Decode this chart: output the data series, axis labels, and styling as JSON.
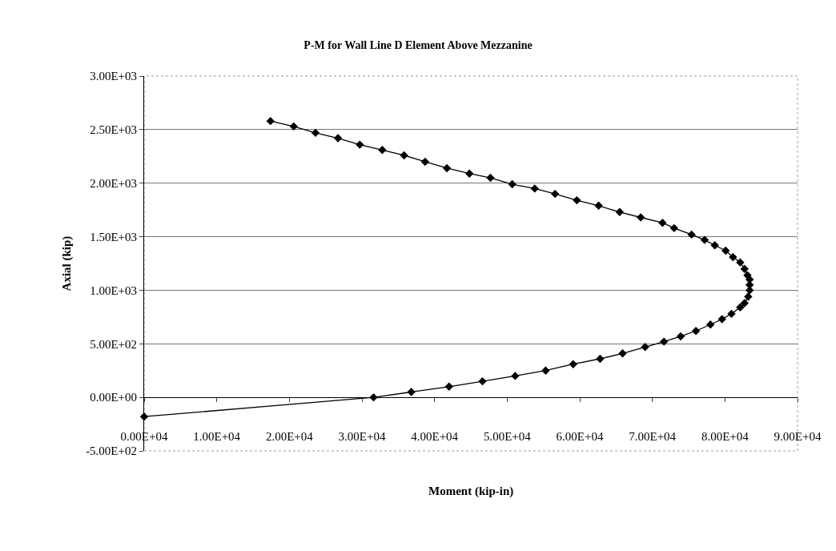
{
  "chart_data": {
    "type": "line",
    "title": "P-M for Wall Line D Element Above Mezzanine",
    "xlabel": "Moment (kip-in)",
    "ylabel": "Axial (kip)",
    "series": [
      {
        "color": "#000000",
        "x": [
          0,
          31600,
          36800,
          42000,
          46600,
          51100,
          55300,
          59100,
          62800,
          65900,
          69000,
          71600,
          73900,
          76000,
          78000,
          79600,
          80900,
          82100,
          82700,
          83200,
          83400,
          83400,
          83400,
          83100,
          82700,
          82100,
          81100,
          80100,
          78600,
          77200,
          75400,
          73000,
          71400,
          68400,
          65500,
          62600,
          59600,
          56600,
          53800,
          50700,
          47700,
          44800,
          41700,
          38700,
          35800,
          32800,
          29700,
          26700,
          23600,
          20600,
          17400
        ],
        "values": [
          -180,
          0,
          50,
          100,
          150,
          200,
          250,
          310,
          360,
          410,
          470,
          520,
          570,
          620,
          680,
          730,
          780,
          840,
          880,
          940,
          1000,
          1050,
          1100,
          1140,
          1200,
          1260,
          1310,
          1370,
          1420,
          1470,
          1520,
          1580,
          1630,
          1680,
          1730,
          1790,
          1840,
          1900,
          1950,
          1990,
          2050,
          2090,
          2140,
          2200,
          2260,
          2310,
          2360,
          2420,
          2470,
          2530,
          2580
        ]
      }
    ],
    "xlim": [
      0,
      90000
    ],
    "ylim": [
      -500,
      3000
    ],
    "xticks": [
      {
        "value": 0,
        "label": "0.00E+04"
      },
      {
        "value": 10000,
        "label": "1.00E+04"
      },
      {
        "value": 20000,
        "label": "2.00E+04"
      },
      {
        "value": 30000,
        "label": "3.00E+04"
      },
      {
        "value": 40000,
        "label": "4.00E+04"
      },
      {
        "value": 50000,
        "label": "5.00E+04"
      },
      {
        "value": 60000,
        "label": "6.00E+04"
      },
      {
        "value": 70000,
        "label": "7.00E+04"
      },
      {
        "value": 80000,
        "label": "8.00E+04"
      },
      {
        "value": 90000,
        "label": "9.00E+04"
      }
    ],
    "yticks": [
      {
        "value": -500,
        "label": "-5.00E+02"
      },
      {
        "value": 0,
        "label": "0.00E+00"
      },
      {
        "value": 500,
        "label": "5.00E+02"
      },
      {
        "value": 1000,
        "label": "1.00E+03"
      },
      {
        "value": 1500,
        "label": "1.50E+03"
      },
      {
        "value": 2000,
        "label": "2.00E+03"
      },
      {
        "value": 2500,
        "label": "2.50E+03"
      },
      {
        "value": 3000,
        "label": "3.00E+03"
      }
    ],
    "grid": "y",
    "marker": "diamond",
    "line_style": "solid"
  }
}
